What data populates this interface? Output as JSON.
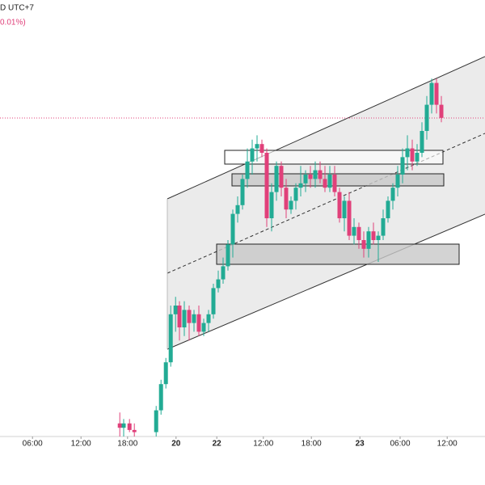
{
  "chart_data": {
    "type": "candlestick",
    "header": "D UTC+7",
    "subheader": "0.01%)",
    "xlim": [
      0,
      100
    ],
    "ylim": [
      0,
      100
    ],
    "xticks": [
      {
        "value": 6.7,
        "label": "06:00"
      },
      {
        "value": 16.7,
        "label": "12:00"
      },
      {
        "value": 26.3,
        "label": "18:00"
      },
      {
        "value": 36.3,
        "label": "20"
      },
      {
        "value": 44.7,
        "label": "22"
      },
      {
        "value": 54.3,
        "label": "12:00"
      },
      {
        "value": 64.2,
        "label": "18:00"
      },
      {
        "value": 74.2,
        "label": "23"
      },
      {
        "value": 82.5,
        "label": "06:00"
      },
      {
        "value": 92.2,
        "label": "12:00"
      }
    ],
    "up_color": "#22ab94",
    "down_color": "#e0407a",
    "x": [
      24.7,
      25.5,
      26.7,
      27.7,
      32.2,
      33.2,
      34.2,
      35.2,
      36.2,
      37.0,
      38.0,
      39.0,
      40.0,
      41.0,
      42.0,
      43.0,
      44.0,
      45.0,
      46.0,
      47.0,
      48.0,
      49.0,
      50.0,
      51.0,
      52.0,
      53.0,
      54.0,
      55.0,
      56.0,
      57.0,
      58.0,
      59.0,
      60.0,
      61.0,
      62.0,
      63.0,
      64.0,
      65.0,
      66.0,
      67.0,
      68.0,
      69.0,
      70.0,
      71.0,
      72.0,
      73.0,
      74.0,
      75.0,
      76.0,
      77.0,
      78.0,
      79.0,
      80.0,
      81.0,
      82.0,
      83.0,
      84.0,
      85.0,
      86.0,
      87.0,
      88.0,
      89.0,
      90.0,
      91.0
    ],
    "open": [
      3,
      2,
      3,
      1.5,
      1,
      6,
      12,
      17,
      28,
      30,
      25,
      29,
      26,
      28,
      24,
      26,
      28,
      34,
      36,
      39,
      44,
      51,
      53,
      59,
      63,
      66,
      67,
      65,
      50,
      56,
      62,
      57,
      52,
      54,
      57,
      58,
      60,
      59,
      61,
      59,
      57,
      60,
      56,
      50,
      54,
      46,
      48,
      45,
      43,
      47,
      45,
      46,
      50,
      54,
      57,
      60,
      64,
      66,
      63,
      65,
      70,
      76,
      81,
      76
    ],
    "high": [
      5.5,
      4,
      4,
      3,
      7,
      13,
      18,
      30,
      32,
      31,
      31,
      30,
      29,
      30,
      27,
      29,
      35,
      38,
      41,
      45,
      52,
      55,
      60,
      66,
      68,
      69,
      68,
      66,
      58,
      63,
      63,
      59,
      55,
      58,
      62,
      61,
      62,
      63,
      63,
      62,
      62,
      62,
      57,
      55,
      56,
      50,
      49,
      47,
      48,
      49,
      47,
      52,
      55,
      58,
      62,
      66,
      69,
      68,
      67,
      72,
      78,
      82,
      82,
      78
    ],
    "low": [
      0,
      0,
      1,
      0,
      0,
      5,
      11,
      16,
      24,
      22,
      23,
      22,
      24,
      23,
      23,
      24,
      27,
      33,
      35,
      38,
      41,
      49,
      52,
      57,
      60,
      63,
      64,
      48,
      47,
      54,
      55,
      50,
      51,
      52,
      55,
      56,
      57,
      57,
      58,
      56,
      56,
      55,
      49,
      47,
      45,
      44,
      43,
      41,
      41,
      44,
      40,
      45,
      49,
      52,
      55,
      58,
      61,
      61,
      62,
      64,
      68,
      74,
      74,
      72
    ],
    "close": [
      2,
      3,
      1.5,
      1,
      6,
      12,
      17,
      28,
      30,
      25,
      29,
      26,
      28,
      24,
      26,
      28,
      34,
      36,
      39,
      44,
      51,
      53,
      59,
      63,
      66,
      67,
      65,
      50,
      56,
      62,
      57,
      52,
      54,
      57,
      58,
      60,
      59,
      61,
      59,
      57,
      60,
      56,
      50,
      54,
      46,
      48,
      45,
      43,
      47,
      45,
      46,
      50,
      54,
      57,
      60,
      64,
      66,
      63,
      65,
      70,
      76,
      81,
      76,
      73
    ]
  }
}
